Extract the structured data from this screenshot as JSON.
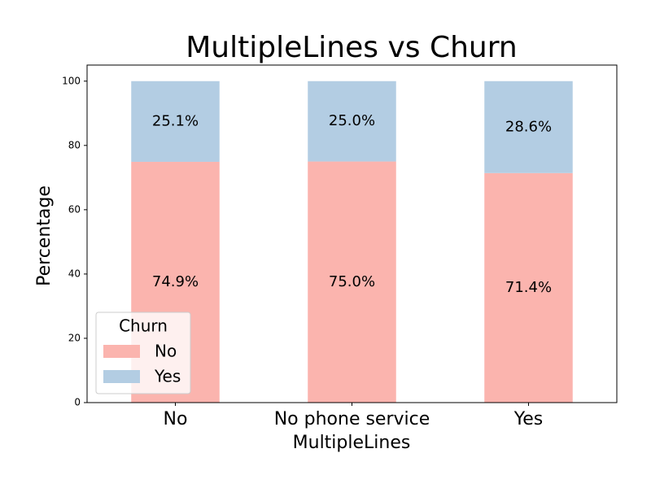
{
  "chart_data": {
    "type": "stacked_bar",
    "title": "MultipleLines vs Churn",
    "x_label": "MultipleLines",
    "y_label": "Percentage",
    "categories": [
      "No",
      "No phone service",
      "Yes"
    ],
    "series": [
      {
        "name": "No",
        "color": "#fbb4ae",
        "values": [
          74.9,
          75.0,
          71.4
        ],
        "value_labels": [
          "74.9%",
          "75.0%",
          "71.4%"
        ]
      },
      {
        "name": "Yes",
        "color": "#b3cde3",
        "values": [
          25.1,
          25.0,
          28.6
        ],
        "value_labels": [
          "25.1%",
          "25.0%",
          "28.6%"
        ]
      }
    ],
    "ylim": [
      0,
      105
    ],
    "yticks": [
      0,
      20,
      40,
      60,
      80,
      100
    ],
    "legend_title": "Churn",
    "legend_position": "lower left"
  }
}
